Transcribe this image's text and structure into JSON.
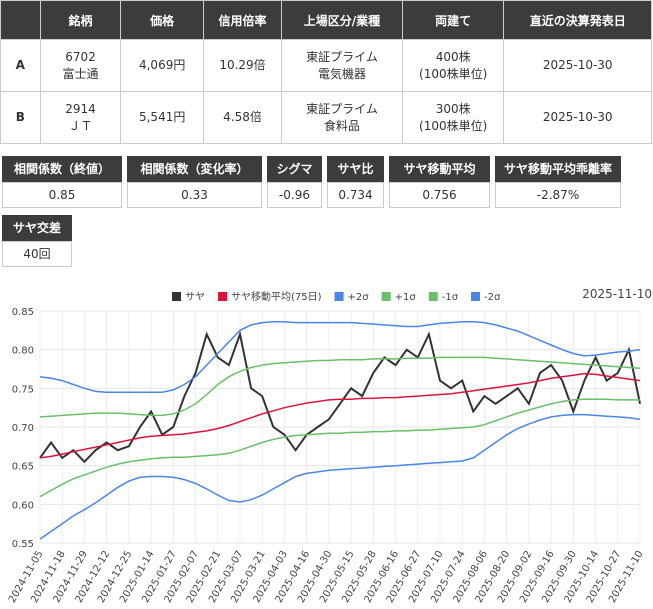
{
  "table": {
    "header": [
      "銘柄",
      "価格",
      "信用倍率",
      "上場区分/業種",
      "両建て",
      "直近の決算発表日"
    ],
    "rows": [
      [
        "A",
        [
          "6702",
          "富士通"
        ],
        "4,069円",
        "10.29倍",
        [
          "東証プライム",
          "電気機器"
        ],
        [
          "400株",
          "(100株単位)"
        ],
        "2025-10-30"
      ],
      [
        "B",
        [
          "2914",
          "ＪＴ"
        ],
        "5,541円",
        "4.58倍",
        [
          "東証プライム",
          "食料品"
        ],
        [
          "300株",
          "(100株単位)"
        ],
        "2025-10-30"
      ]
    ]
  },
  "stats": [
    {
      "label": "相関係数（終値）",
      "value": "0.85"
    },
    {
      "label": "相関係数（変化率）",
      "value": "0.33"
    },
    {
      "label": "シグマ",
      "value": "-0.96"
    },
    {
      "label": "サヤ比",
      "value": "0.734"
    },
    {
      "label": "サヤ移動平均",
      "value": "0.756"
    },
    {
      "label": "サヤ移動平均乖離率",
      "value": "-2.87%"
    },
    {
      "label": "サヤ交差",
      "value": "40回"
    }
  ],
  "chart_data": {
    "type": "line",
    "annotation": "2025-11-10",
    "categories": [
      "2024-11-05",
      null,
      "2024-11-18",
      null,
      "2024-11-29",
      null,
      "2024-12-12",
      null,
      "2024-12-25",
      null,
      "2025-01-14",
      null,
      "2025-01-27",
      null,
      "2025-02-07",
      null,
      "2025-02-21",
      null,
      "2025-03-07",
      null,
      "2025-03-21",
      null,
      "2025-04-03",
      null,
      "2025-04-16",
      null,
      "2025-04-30",
      null,
      "2025-05-15",
      null,
      "2025-05-28",
      null,
      "2025-06-16",
      null,
      "2025-06-27",
      null,
      "2025-07-10",
      null,
      "2025-07-24",
      null,
      "2025-08-06",
      null,
      "2025-08-20",
      null,
      "2025-09-02",
      null,
      "2025-09-16",
      null,
      "2025-09-30",
      null,
      "2025-10-14",
      null,
      "2025-10-27",
      null,
      "2025-11-10"
    ],
    "ylim": [
      0.55,
      0.85
    ],
    "yticks": [
      0.55,
      {
        "value": 0.6,
        "label": "0.60"
      },
      0.65,
      {
        "value": 0.7,
        "label": "0.70"
      },
      0.75,
      {
        "value": 0.8,
        "label": "0.80"
      },
      0.85
    ],
    "grid": true,
    "series": [
      {
        "name": "サヤ",
        "color": "#333333",
        "values": [
          0.66,
          0.68,
          0.66,
          0.67,
          0.655,
          0.67,
          0.68,
          0.67,
          0.675,
          0.7,
          0.72,
          0.69,
          0.7,
          0.74,
          0.77,
          0.82,
          0.79,
          0.78,
          0.82,
          0.75,
          0.74,
          0.7,
          0.69,
          0.67,
          0.69,
          0.7,
          0.71,
          0.73,
          0.75,
          0.74,
          0.77,
          0.79,
          0.78,
          0.8,
          0.79,
          0.82,
          0.76,
          0.75,
          0.76,
          0.72,
          0.74,
          0.73,
          0.74,
          0.75,
          0.73,
          0.77,
          0.78,
          0.76,
          0.72,
          0.76,
          0.79,
          0.76,
          0.77,
          0.8,
          0.73
        ]
      },
      {
        "name": "サヤ移動平均(75日)",
        "color": "#dc143c",
        "values": [
          0.66,
          0.662,
          0.665,
          0.668,
          0.671,
          0.674,
          0.677,
          0.68,
          0.683,
          0.686,
          0.688,
          0.689,
          0.69,
          0.691,
          0.693,
          0.695,
          0.698,
          0.702,
          0.707,
          0.712,
          0.717,
          0.721,
          0.725,
          0.728,
          0.731,
          0.733,
          0.735,
          0.736,
          0.736,
          0.737,
          0.737,
          0.738,
          0.738,
          0.739,
          0.74,
          0.741,
          0.742,
          0.743,
          0.745,
          0.747,
          0.749,
          0.751,
          0.753,
          0.755,
          0.757,
          0.76,
          0.763,
          0.765,
          0.767,
          0.769,
          0.768,
          0.766,
          0.764,
          0.762,
          0.76
        ]
      },
      {
        "name": "+2σ",
        "color": "#4a86e8",
        "values": [
          0.765,
          0.763,
          0.76,
          0.755,
          0.75,
          0.746,
          0.745,
          0.745,
          0.745,
          0.745,
          0.745,
          0.745,
          0.748,
          0.755,
          0.765,
          0.78,
          0.795,
          0.81,
          0.825,
          0.832,
          0.835,
          0.836,
          0.836,
          0.835,
          0.835,
          0.835,
          0.835,
          0.835,
          0.835,
          0.834,
          0.833,
          0.832,
          0.831,
          0.83,
          0.83,
          0.832,
          0.834,
          0.835,
          0.836,
          0.836,
          0.835,
          0.832,
          0.828,
          0.824,
          0.818,
          0.812,
          0.806,
          0.8,
          0.795,
          0.792,
          0.793,
          0.795,
          0.797,
          0.798,
          0.8
        ]
      },
      {
        "name": "+1σ",
        "color": "#6abf69",
        "values": [
          0.713,
          0.714,
          0.715,
          0.716,
          0.717,
          0.718,
          0.718,
          0.718,
          0.717,
          0.716,
          0.715,
          0.715,
          0.717,
          0.722,
          0.73,
          0.742,
          0.755,
          0.765,
          0.772,
          0.777,
          0.78,
          0.782,
          0.783,
          0.784,
          0.785,
          0.786,
          0.786,
          0.787,
          0.787,
          0.787,
          0.788,
          0.788,
          0.788,
          0.789,
          0.789,
          0.789,
          0.79,
          0.79,
          0.79,
          0.79,
          0.79,
          0.789,
          0.788,
          0.787,
          0.786,
          0.785,
          0.784,
          0.783,
          0.782,
          0.781,
          0.78,
          0.779,
          0.778,
          0.777,
          0.776
        ]
      },
      {
        "name": "-1σ",
        "color": "#6abf69",
        "values": [
          0.61,
          0.618,
          0.626,
          0.633,
          0.638,
          0.643,
          0.648,
          0.652,
          0.655,
          0.657,
          0.659,
          0.66,
          0.661,
          0.661,
          0.662,
          0.663,
          0.664,
          0.666,
          0.67,
          0.675,
          0.68,
          0.684,
          0.687,
          0.689,
          0.69,
          0.691,
          0.692,
          0.692,
          0.693,
          0.693,
          0.694,
          0.694,
          0.695,
          0.695,
          0.696,
          0.696,
          0.697,
          0.698,
          0.699,
          0.7,
          0.703,
          0.708,
          0.713,
          0.718,
          0.722,
          0.726,
          0.73,
          0.733,
          0.735,
          0.736,
          0.736,
          0.736,
          0.735,
          0.735,
          0.735
        ]
      },
      {
        "name": "-2σ",
        "color": "#4a86e8",
        "values": [
          0.555,
          0.565,
          0.575,
          0.585,
          0.593,
          0.602,
          0.612,
          0.622,
          0.63,
          0.635,
          0.636,
          0.636,
          0.635,
          0.632,
          0.627,
          0.62,
          0.612,
          0.605,
          0.603,
          0.606,
          0.612,
          0.62,
          0.628,
          0.636,
          0.64,
          0.642,
          0.644,
          0.645,
          0.646,
          0.647,
          0.648,
          0.649,
          0.65,
          0.651,
          0.652,
          0.653,
          0.654,
          0.655,
          0.656,
          0.66,
          0.67,
          0.68,
          0.69,
          0.698,
          0.704,
          0.709,
          0.713,
          0.715,
          0.716,
          0.716,
          0.715,
          0.714,
          0.713,
          0.712,
          0.71
        ]
      }
    ]
  }
}
